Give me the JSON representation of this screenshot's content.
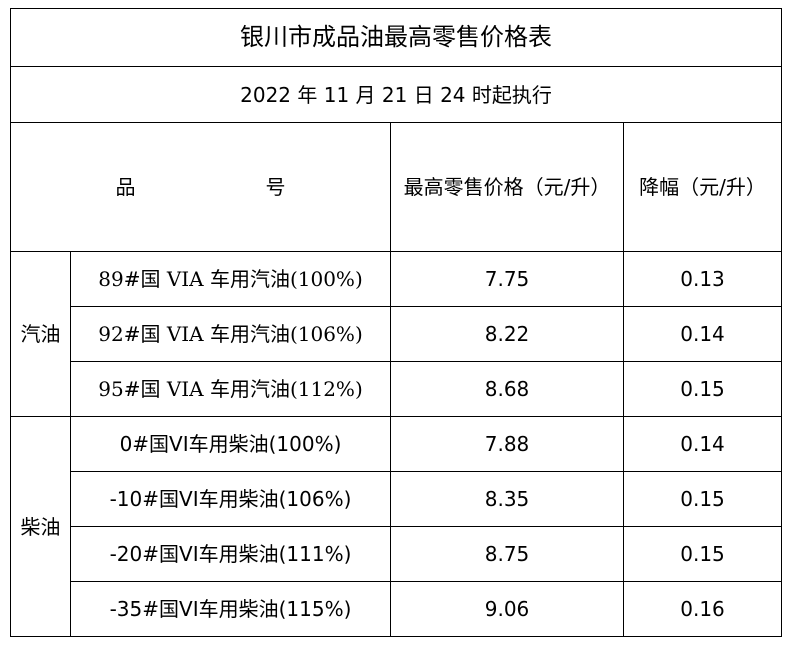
{
  "title": "银川市成品油最高零售价格表",
  "effective_date": "2022 年 11 月 21 日 24 时起执行",
  "headers": {
    "product_part1": "品",
    "product_part2": "号",
    "max_price": "最高零售价格（元/升）",
    "decrease": "降幅（元/升）"
  },
  "groups": [
    {
      "name": "汽油",
      "rows": [
        {
          "product": "89#国 VIA 车用汽油(100%)",
          "price": "7.75",
          "decrease": "0.13"
        },
        {
          "product": "92#国 VIA 车用汽油(106%)",
          "price": "8.22",
          "decrease": "0.14"
        },
        {
          "product": "95#国 VIA 车用汽油(112%)",
          "price": "8.68",
          "decrease": "0.15"
        }
      ]
    },
    {
      "name": "柴油",
      "rows": [
        {
          "product": "0#国VI车用柴油(100%)",
          "price": "7.88",
          "decrease": "0.14"
        },
        {
          "product": "-10#国VI车用柴油(106%)",
          "price": "8.35",
          "decrease": "0.15"
        },
        {
          "product": "-20#国VI车用柴油(111%)",
          "price": "8.75",
          "decrease": "0.15"
        },
        {
          "product": "-35#国VI车用柴油(115%)",
          "price": "9.06",
          "decrease": "0.16"
        }
      ]
    }
  ]
}
